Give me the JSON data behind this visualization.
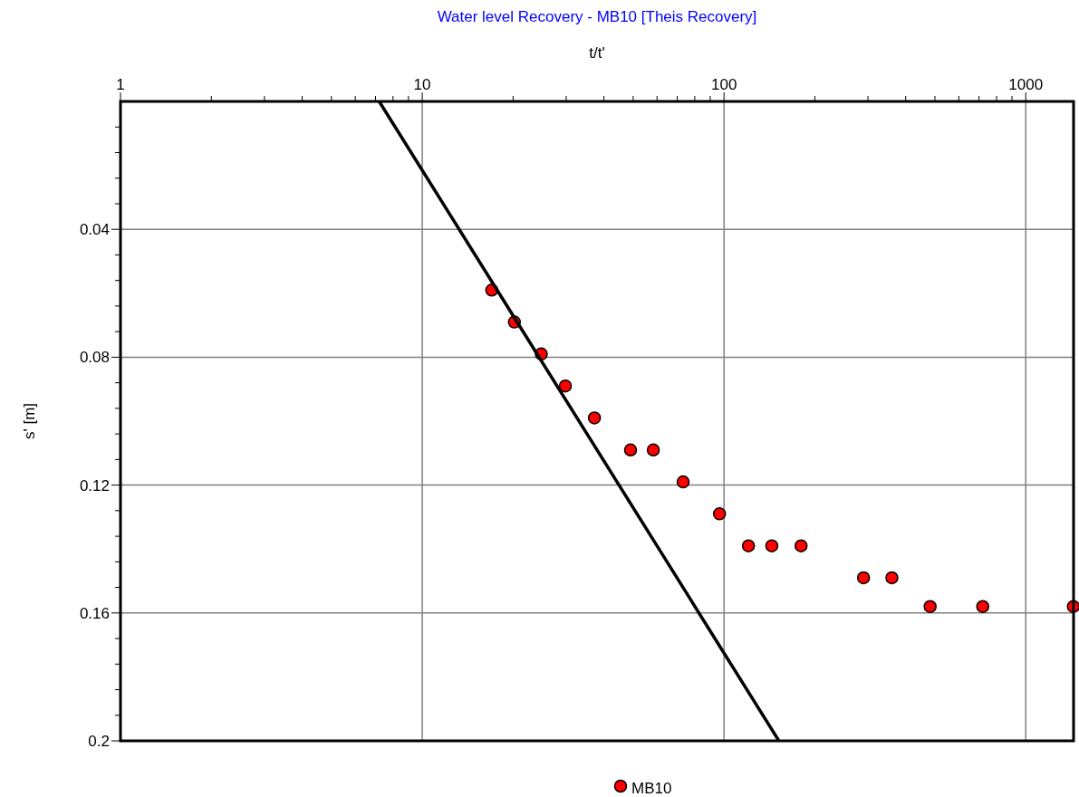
{
  "chart_data": {
    "type": "scatter",
    "title": "Water level Recovery - MB10 [Theis Recovery]",
    "xlabel": "t/t'",
    "ylabel": "s' [m]",
    "log": "x",
    "grid": true,
    "legend": "bottom",
    "marker": "circle",
    "xlim": [
      1,
      1440
    ],
    "xticks": [
      1,
      {
        "value": 2,
        "label": null
      },
      {
        "value": 3,
        "label": null
      },
      {
        "value": 4,
        "label": null
      },
      {
        "value": 5,
        "label": null
      },
      {
        "value": 6,
        "label": null
      },
      {
        "value": 7,
        "label": null
      },
      {
        "value": 8,
        "label": null
      },
      {
        "value": 9,
        "label": null
      },
      10,
      {
        "value": 20,
        "label": null
      },
      {
        "value": 30,
        "label": null
      },
      {
        "value": 40,
        "label": null
      },
      {
        "value": 50,
        "label": null
      },
      {
        "value": 60,
        "label": null
      },
      {
        "value": 70,
        "label": null
      },
      {
        "value": 80,
        "label": null
      },
      {
        "value": 90,
        "label": null
      },
      100,
      {
        "value": 200,
        "label": null
      },
      {
        "value": 300,
        "label": null
      },
      {
        "value": 400,
        "label": null
      },
      {
        "value": 500,
        "label": null
      },
      {
        "value": 600,
        "label": null
      },
      {
        "value": 700,
        "label": null
      },
      {
        "value": 800,
        "label": null
      },
      {
        "value": 900,
        "label": null
      },
      1000
    ],
    "ylim": [
      0.2,
      0
    ],
    "yticks": [
      {
        "value": 0.008,
        "label": null
      },
      {
        "value": 0.016,
        "label": null
      },
      {
        "value": 0.024,
        "label": null
      },
      {
        "value": 0.032,
        "label": null
      },
      0.04,
      {
        "value": 0.048,
        "label": null
      },
      {
        "value": 0.056,
        "label": null
      },
      {
        "value": 0.064,
        "label": null
      },
      {
        "value": 0.072,
        "label": null
      },
      0.08,
      {
        "value": 0.088,
        "label": null
      },
      {
        "value": 0.096,
        "label": null
      },
      {
        "value": 0.104,
        "label": null
      },
      {
        "value": 0.112,
        "label": null
      },
      0.12,
      {
        "value": 0.128,
        "label": null
      },
      {
        "value": 0.136,
        "label": null
      },
      {
        "value": 0.144,
        "label": null
      },
      {
        "value": 0.152,
        "label": null
      },
      0.16,
      {
        "value": 0.168,
        "label": null
      },
      {
        "value": 0.176,
        "label": null
      },
      {
        "value": 0.184,
        "label": null
      },
      {
        "value": 0.192,
        "label": null
      },
      0.2
    ],
    "series": [
      {
        "name": "MB10",
        "color": "#ff0000",
        "x": [
          17,
          20.2,
          24.8,
          29.8,
          37.2,
          49,
          58.3,
          73.2,
          96.6,
          120.5,
          144,
          180,
          290,
          360,
          482,
          720,
          1438
        ],
        "values": [
          0.059,
          0.069,
          0.079,
          0.089,
          0.099,
          0.109,
          0.109,
          0.119,
          0.129,
          0.139,
          0.139,
          0.139,
          0.149,
          0.149,
          0.158,
          0.158,
          0.158
        ]
      },
      {
        "type": "line",
        "marker": "none",
        "color": "#000000",
        "x": [
          7.2,
          152
        ],
        "values": [
          0,
          0.2
        ]
      }
    ]
  }
}
